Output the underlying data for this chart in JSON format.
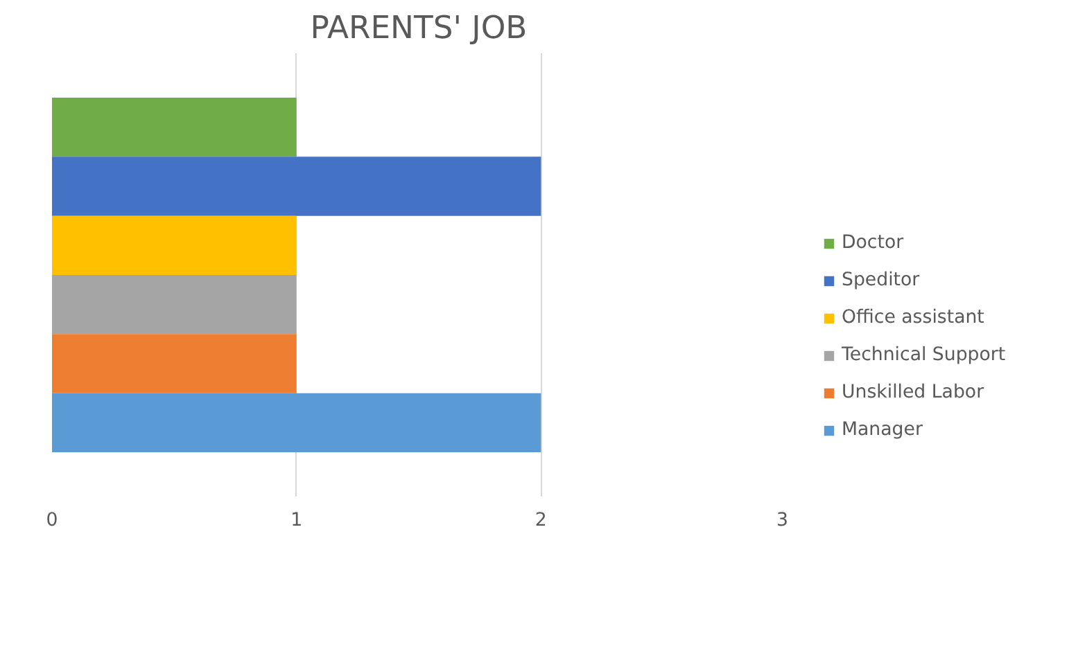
{
  "chart_data": {
    "type": "bar",
    "orientation": "horizontal",
    "title": "PARENTS' JOB",
    "categories": [
      null
    ],
    "series": [
      {
        "name": "Doctor",
        "color": "#70ad47",
        "values": [
          1
        ]
      },
      {
        "name": "Speditor",
        "color": "#4472c4",
        "values": [
          2
        ]
      },
      {
        "name": "Office assistant",
        "color": "#ffc000",
        "values": [
          1
        ]
      },
      {
        "name": "Technical Support",
        "color": "#a5a5a5",
        "values": [
          1
        ]
      },
      {
        "name": "Unskilled Labor",
        "color": "#ed7d31",
        "values": [
          1
        ]
      },
      {
        "name": "Manager",
        "color": "#5b9bd5",
        "values": [
          2
        ]
      }
    ],
    "xlim": [
      0,
      3
    ],
    "xticks": [
      0,
      1,
      2,
      3
    ],
    "grid": "x",
    "legend": "right"
  }
}
